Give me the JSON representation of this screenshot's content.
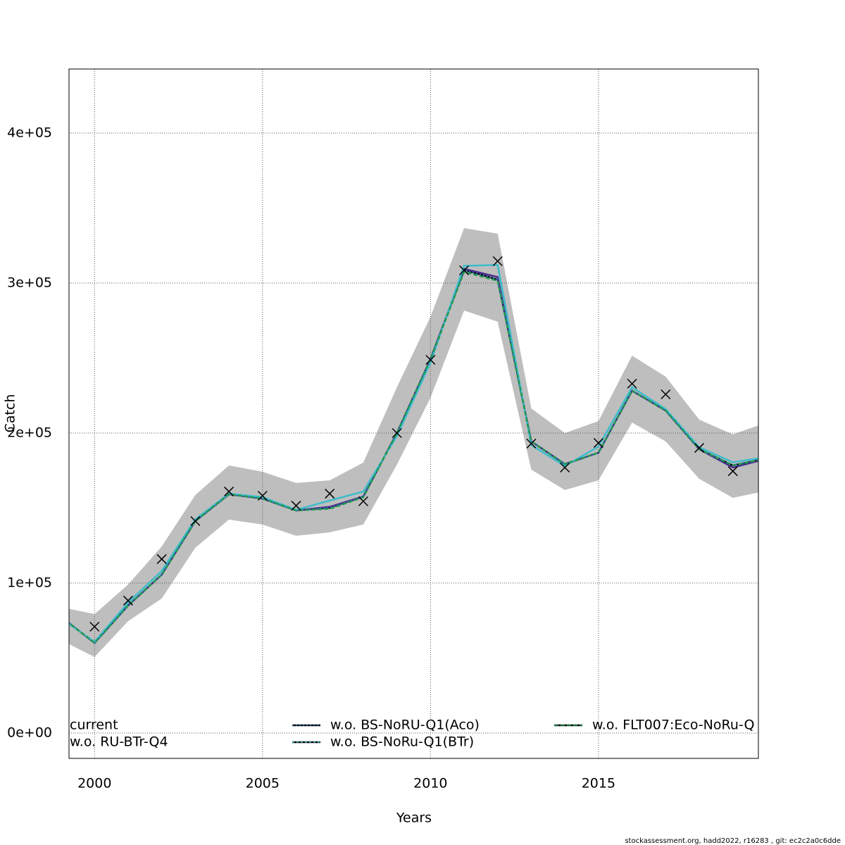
{
  "chart_data": {
    "type": "line",
    "x_label": "Years",
    "y_label": "Catch",
    "footer": "stockassessment.org, hadd2022, r16283 , git: ec2c2a0c6dde",
    "x": [
      1999,
      2000,
      2001,
      2002,
      2003,
      2004,
      2005,
      2006,
      2007,
      2008,
      2009,
      2010,
      2011,
      2012,
      2013,
      2014,
      2015,
      2016,
      2017,
      2018,
      2019,
      2020
    ],
    "xlim": [
      1999.24,
      2019.76
    ],
    "ylim": [
      -16900,
      442700
    ],
    "xticks": [
      2000,
      2005,
      2010,
      2015
    ],
    "yticks": [
      {
        "value": 0,
        "label": "0e+00"
      },
      {
        "value": 100000,
        "label": "1e+05"
      },
      {
        "value": 200000,
        "label": "2e+05"
      },
      {
        "value": 300000,
        "label": "3e+05"
      },
      {
        "value": 400000,
        "label": "4e+05"
      }
    ],
    "grid": true,
    "band": {
      "color": "#bebebe",
      "upper": [
        84000,
        79300,
        99000,
        124400,
        158700,
        178400,
        174200,
        166700,
        168500,
        180300,
        230500,
        277500,
        336600,
        332900,
        216400,
        200000,
        208000,
        251600,
        237600,
        208900,
        199100,
        207000
      ],
      "lower": [
        62000,
        50700,
        74600,
        89700,
        123500,
        142300,
        139000,
        131500,
        133800,
        139000,
        178900,
        223500,
        281700,
        274200,
        175600,
        162000,
        168500,
        207000,
        194400,
        169500,
        156800,
        161500
      ]
    },
    "series": [
      {
        "name": "current",
        "color": "#000000",
        "linestyle": "solid",
        "values": [
          77500,
          60100,
          85000,
          105600,
          141300,
          159200,
          156300,
          148400,
          150200,
          157700,
          200000,
          249300,
          308900,
          302300,
          194400,
          179300,
          186900,
          228200,
          215000,
          189200,
          178400,
          183100
        ]
      },
      {
        "name": "w.o. RU-BTr-Q4",
        "color": "#4b2a8c",
        "linestyle": "solid",
        "values": [
          77500,
          60100,
          85000,
          105600,
          141300,
          159200,
          156300,
          148400,
          150800,
          157700,
          200000,
          249300,
          309500,
          304000,
          194400,
          179300,
          186900,
          228200,
          215000,
          189200,
          177000,
          182800
        ]
      },
      {
        "name": "w.o. BS-NoRU-Q1(Aco)",
        "color": "#2f6db5",
        "linestyle": "dotted",
        "values": [
          77500,
          60100,
          85000,
          105600,
          141300,
          159200,
          156300,
          148400,
          150200,
          157700,
          200000,
          249300,
          308900,
          302300,
          194400,
          179300,
          186900,
          228200,
          215000,
          189200,
          178400,
          183100
        ]
      },
      {
        "name": "w.o. BS-NoRu-Q1(BTr)",
        "color": "#3cbccc",
        "linestyle": "solid",
        "values": [
          76500,
          60800,
          87000,
          108000,
          142500,
          159600,
          157300,
          148800,
          155000,
          161000,
          198000,
          247000,
          311500,
          312000,
          192000,
          178000,
          191000,
          230500,
          216000,
          190500,
          180500,
          184000
        ]
      },
      {
        "name": "w.o. FLT007:Eco-NoRu-Q",
        "color": "#1f9950",
        "linestyle": "dashed",
        "values": [
          77500,
          60100,
          85000,
          105600,
          141300,
          159200,
          156300,
          148400,
          149500,
          157200,
          200000,
          249300,
          307500,
          301500,
          194400,
          179300,
          186900,
          228200,
          215000,
          189200,
          178400,
          183100
        ]
      }
    ],
    "observed": {
      "x": [
        2000,
        2001,
        2002,
        2003,
        2004,
        2005,
        2006,
        2007,
        2008,
        2009,
        2010,
        2011,
        2012,
        2013,
        2014,
        2015,
        2016,
        2017,
        2018,
        2019
      ],
      "values": [
        70900,
        88300,
        116000,
        141300,
        161000,
        158200,
        151600,
        159600,
        154500,
        200000,
        248800,
        308500,
        314600,
        193000,
        177000,
        193400,
        232900,
        225800,
        190100,
        174600
      ]
    }
  }
}
